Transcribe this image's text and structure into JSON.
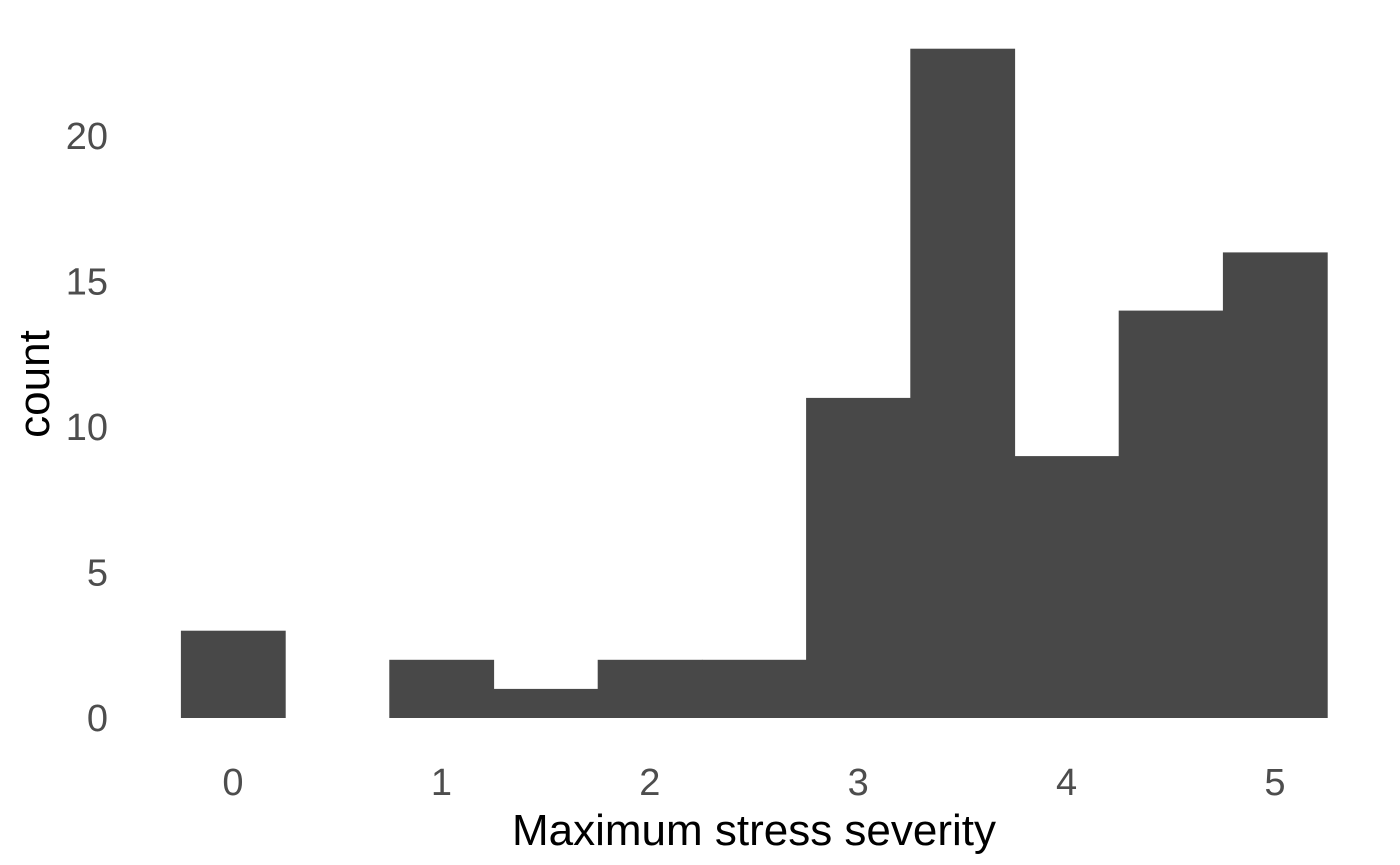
{
  "chart_data": {
    "type": "bar",
    "title": "",
    "xlabel": "Maximum stress severity",
    "ylabel": "count",
    "bin_width": 0.5,
    "bins": [
      {
        "x_center": 0.0,
        "count": 3
      },
      {
        "x_center": 0.5,
        "count": 0
      },
      {
        "x_center": 1.0,
        "count": 2
      },
      {
        "x_center": 1.5,
        "count": 1
      },
      {
        "x_center": 2.0,
        "count": 2
      },
      {
        "x_center": 2.5,
        "count": 2
      },
      {
        "x_center": 3.0,
        "count": 11
      },
      {
        "x_center": 3.5,
        "count": 23
      },
      {
        "x_center": 4.0,
        "count": 9
      },
      {
        "x_center": 4.5,
        "count": 14
      },
      {
        "x_center": 5.0,
        "count": 16
      }
    ],
    "x_ticks": [
      "0",
      "1",
      "2",
      "3",
      "4",
      "5"
    ],
    "y_ticks": [
      "0",
      "5",
      "10",
      "15",
      "20"
    ],
    "xlim": [
      -0.25,
      5.25
    ],
    "ylim": [
      0,
      23
    ],
    "grid": false,
    "bar_color": "#484848"
  }
}
